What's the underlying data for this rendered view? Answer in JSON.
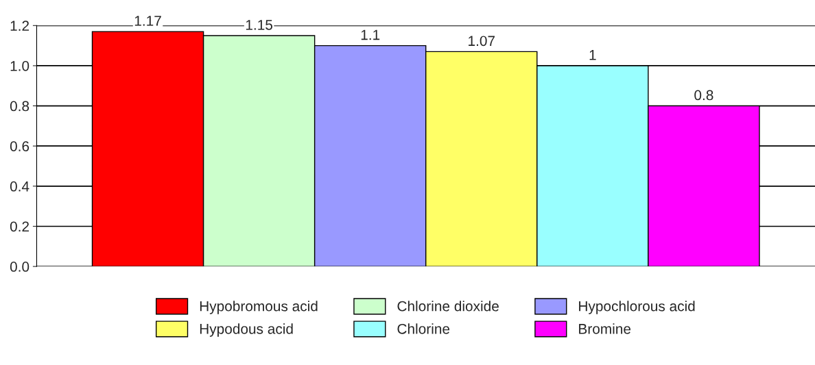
{
  "chart_data": {
    "type": "bar",
    "categories": [
      null,
      null,
      null,
      null,
      null,
      null
    ],
    "series": [
      {
        "name": "Hypobromous acid",
        "color": "#ff0000",
        "values": [
          1.17,
          null,
          null,
          null,
          null,
          null
        ]
      },
      {
        "name": "Chlorine dioxide",
        "color": "#ccffcc",
        "values": [
          null,
          1.15,
          null,
          null,
          null,
          null
        ]
      },
      {
        "name": "Hypochlorous acid",
        "color": "#9999ff",
        "values": [
          null,
          null,
          1.1,
          null,
          null,
          null
        ]
      },
      {
        "name": "Hypodous acid",
        "color": "#ffff66",
        "values": [
          null,
          null,
          null,
          1.07,
          null,
          null
        ]
      },
      {
        "name": "Chlorine",
        "color": "#99ffff",
        "values": [
          null,
          null,
          null,
          null,
          1,
          null
        ]
      },
      {
        "name": "Bromine",
        "color": "#ff00ff",
        "values": [
          null,
          null,
          null,
          null,
          null,
          0.8
        ]
      }
    ],
    "ylim": [
      0,
      1.2
    ],
    "yticks": [
      {
        "value": 0,
        "label": "0.0"
      },
      {
        "value": 0.2,
        "label": "0.2"
      },
      {
        "value": 0.4,
        "label": "0.4"
      },
      {
        "value": 0.6,
        "label": "0.6"
      },
      {
        "value": 0.8,
        "label": "0.8"
      },
      {
        "value": 1.0,
        "label": "1.0"
      },
      {
        "value": 1.2,
        "label": "1.2"
      }
    ],
    "grid": "y",
    "legend": "bottom",
    "data_labels": true
  }
}
